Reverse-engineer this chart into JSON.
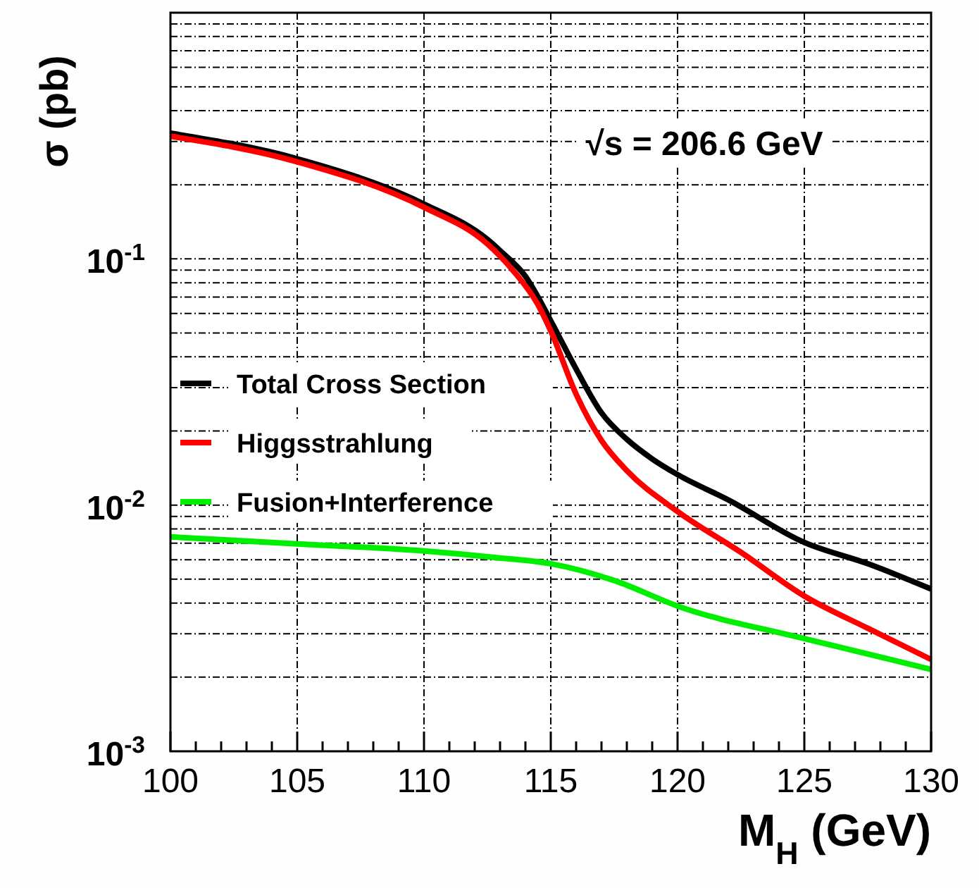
{
  "chart_data": {
    "type": "line",
    "xlabel": "M$_{H}$ (GeV)",
    "ylabel": "σ (pb)",
    "annotations": [
      "√s = 206.6 GeV"
    ],
    "log": "y",
    "grid": true,
    "legend": "left",
    "line_style": "solid",
    "marker": "none",
    "xlim": [
      100,
      130
    ],
    "ylim": [
      0.001,
      1
    ],
    "xticks": [
      100,
      {
        "value": 101,
        "label": null
      },
      {
        "value": 102,
        "label": null
      },
      {
        "value": 103,
        "label": null
      },
      {
        "value": 104,
        "label": null
      },
      105,
      {
        "value": 106,
        "label": null
      },
      {
        "value": 107,
        "label": null
      },
      {
        "value": 108,
        "label": null
      },
      {
        "value": 109,
        "label": null
      },
      110,
      {
        "value": 111,
        "label": null
      },
      {
        "value": 112,
        "label": null
      },
      {
        "value": 113,
        "label": null
      },
      {
        "value": 114,
        "label": null
      },
      115,
      {
        "value": 116,
        "label": null
      },
      {
        "value": 117,
        "label": null
      },
      {
        "value": 118,
        "label": null
      },
      {
        "value": 119,
        "label": null
      },
      120,
      {
        "value": 121,
        "label": null
      },
      {
        "value": 122,
        "label": null
      },
      {
        "value": 123,
        "label": null
      },
      {
        "value": 124,
        "label": null
      },
      125,
      {
        "value": 126,
        "label": null
      },
      {
        "value": 127,
        "label": null
      },
      {
        "value": 128,
        "label": null
      },
      {
        "value": 129,
        "label": null
      },
      130
    ],
    "yticks": [
      {
        "value": 0.001,
        "label": "10$^{-3}$"
      },
      {
        "value": 0.002,
        "label": null
      },
      {
        "value": 0.003,
        "label": null
      },
      {
        "value": 0.004,
        "label": null
      },
      {
        "value": 0.005,
        "label": null
      },
      {
        "value": 0.006,
        "label": null
      },
      {
        "value": 0.007,
        "label": null
      },
      {
        "value": 0.008,
        "label": null
      },
      {
        "value": 0.009,
        "label": null
      },
      {
        "value": 0.01,
        "label": "10$^{-2}$"
      },
      {
        "value": 0.02,
        "label": null
      },
      {
        "value": 0.03,
        "label": null
      },
      {
        "value": 0.04,
        "label": null
      },
      {
        "value": 0.05,
        "label": null
      },
      {
        "value": 0.06,
        "label": null
      },
      {
        "value": 0.07,
        "label": null
      },
      {
        "value": 0.08,
        "label": null
      },
      {
        "value": 0.09,
        "label": null
      },
      {
        "value": 0.1,
        "label": "10$^{-1}$"
      },
      {
        "value": 0.2,
        "label": null
      },
      {
        "value": 0.3,
        "label": null
      },
      {
        "value": 0.4,
        "label": null
      },
      {
        "value": 0.5,
        "label": null
      },
      {
        "value": 0.6,
        "label": null
      },
      {
        "value": 0.7,
        "label": null
      },
      {
        "value": 0.8,
        "label": null
      },
      {
        "value": 0.9,
        "label": null
      }
    ],
    "series": [
      {
        "name": "Total Cross Section",
        "color": "#000000",
        "x": [
          100,
          105,
          110,
          112.5,
          113,
          114,
          115,
          116,
          117,
          118,
          119,
          120,
          122,
          125,
          127.5,
          130
        ],
        "values": [
          0.324,
          0.255,
          0.167,
          0.12,
          0.108,
          0.085,
          0.056,
          0.0357,
          0.0237,
          0.0185,
          0.0154,
          0.0133,
          0.0105,
          0.00705,
          0.00578,
          0.00456
        ]
      },
      {
        "name": "Higgsstrahlung",
        "color": "#ff0000",
        "x": [
          100,
          105,
          110,
          112.5,
          113.5,
          114.5,
          115,
          116,
          117,
          118,
          120,
          122.5,
          125,
          127.5,
          130
        ],
        "values": [
          0.315,
          0.248,
          0.162,
          0.115,
          0.09,
          0.065,
          0.051,
          0.0282,
          0.0183,
          0.0138,
          0.00942,
          0.00643,
          0.00427,
          0.00316,
          0.00236
        ]
      },
      {
        "name": "Fusion+Interference",
        "color": "#00ee00",
        "x": [
          100,
          105,
          110,
          113,
          115,
          117.5,
          120,
          125,
          130
        ],
        "values": [
          0.00743,
          0.00696,
          0.00651,
          0.0061,
          0.00578,
          0.00494,
          0.00389,
          0.00287,
          0.00215
        ]
      }
    ]
  }
}
